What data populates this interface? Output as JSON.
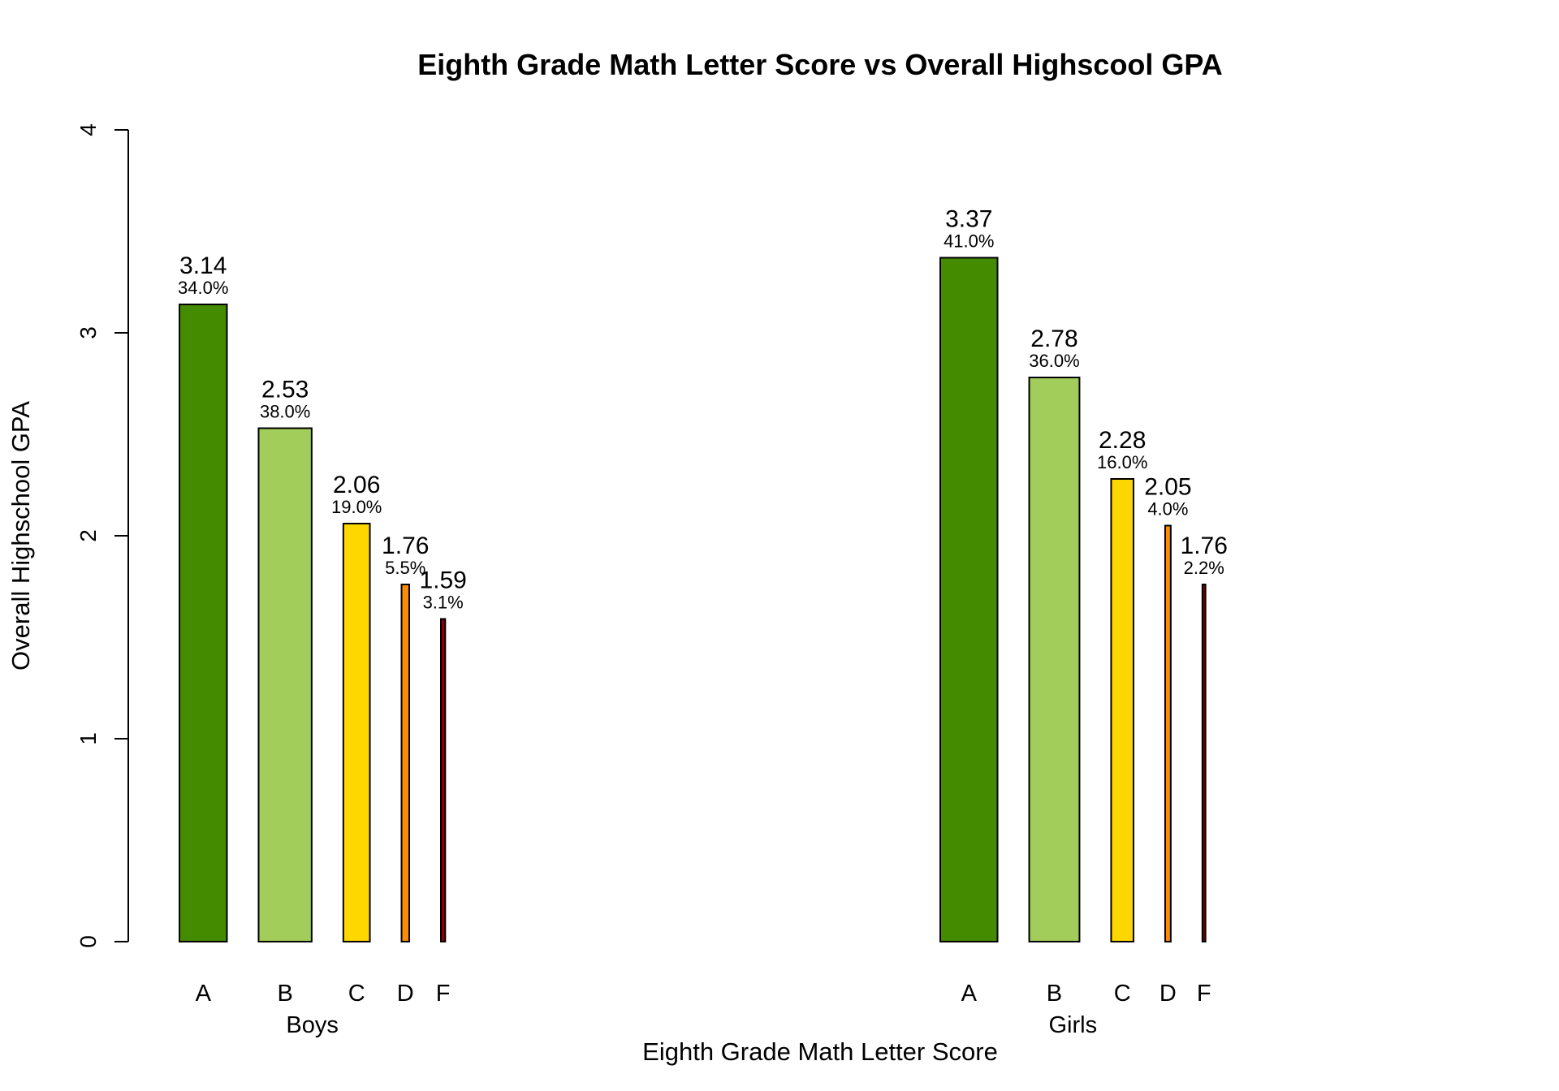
{
  "chart_data": {
    "type": "bar",
    "title": "Eighth Grade Math Letter Score vs Overall Highscool GPA",
    "xlabel": "Eighth Grade Math Letter Score",
    "ylabel": "Overall Highschool GPA",
    "ylim": [
      0,
      4
    ],
    "yticks": [
      "0",
      "1",
      "2",
      "3",
      "4"
    ],
    "categories": [
      "A",
      "B",
      "C",
      "D",
      "F"
    ],
    "colors": {
      "A": "#458B00",
      "B": "#A2CD5A",
      "C": "#FFD700",
      "D": "#FF8C00",
      "F": "#8B0000"
    },
    "groups": [
      {
        "name": "Boys",
        "values": [
          3.14,
          2.53,
          2.06,
          1.76,
          1.59
        ],
        "value_labels": [
          "3.14",
          "2.53",
          "2.06",
          "1.76",
          "1.59"
        ],
        "shares": [
          34.0,
          38.0,
          19.0,
          5.5,
          3.1
        ],
        "share_labels": [
          "34.0%",
          "38.0%",
          "19.0%",
          "5.5%",
          "3.1%"
        ]
      },
      {
        "name": "Girls",
        "values": [
          3.37,
          2.78,
          2.28,
          2.05,
          1.76
        ],
        "value_labels": [
          "3.37",
          "2.78",
          "2.28",
          "2.05",
          "1.76"
        ],
        "shares": [
          41.0,
          36.0,
          16.0,
          4.0,
          2.2
        ],
        "share_labels": [
          "41.0%",
          "36.0%",
          "16.0%",
          "4.0%",
          "2.2%"
        ]
      }
    ],
    "grid": false,
    "legend": "none"
  }
}
